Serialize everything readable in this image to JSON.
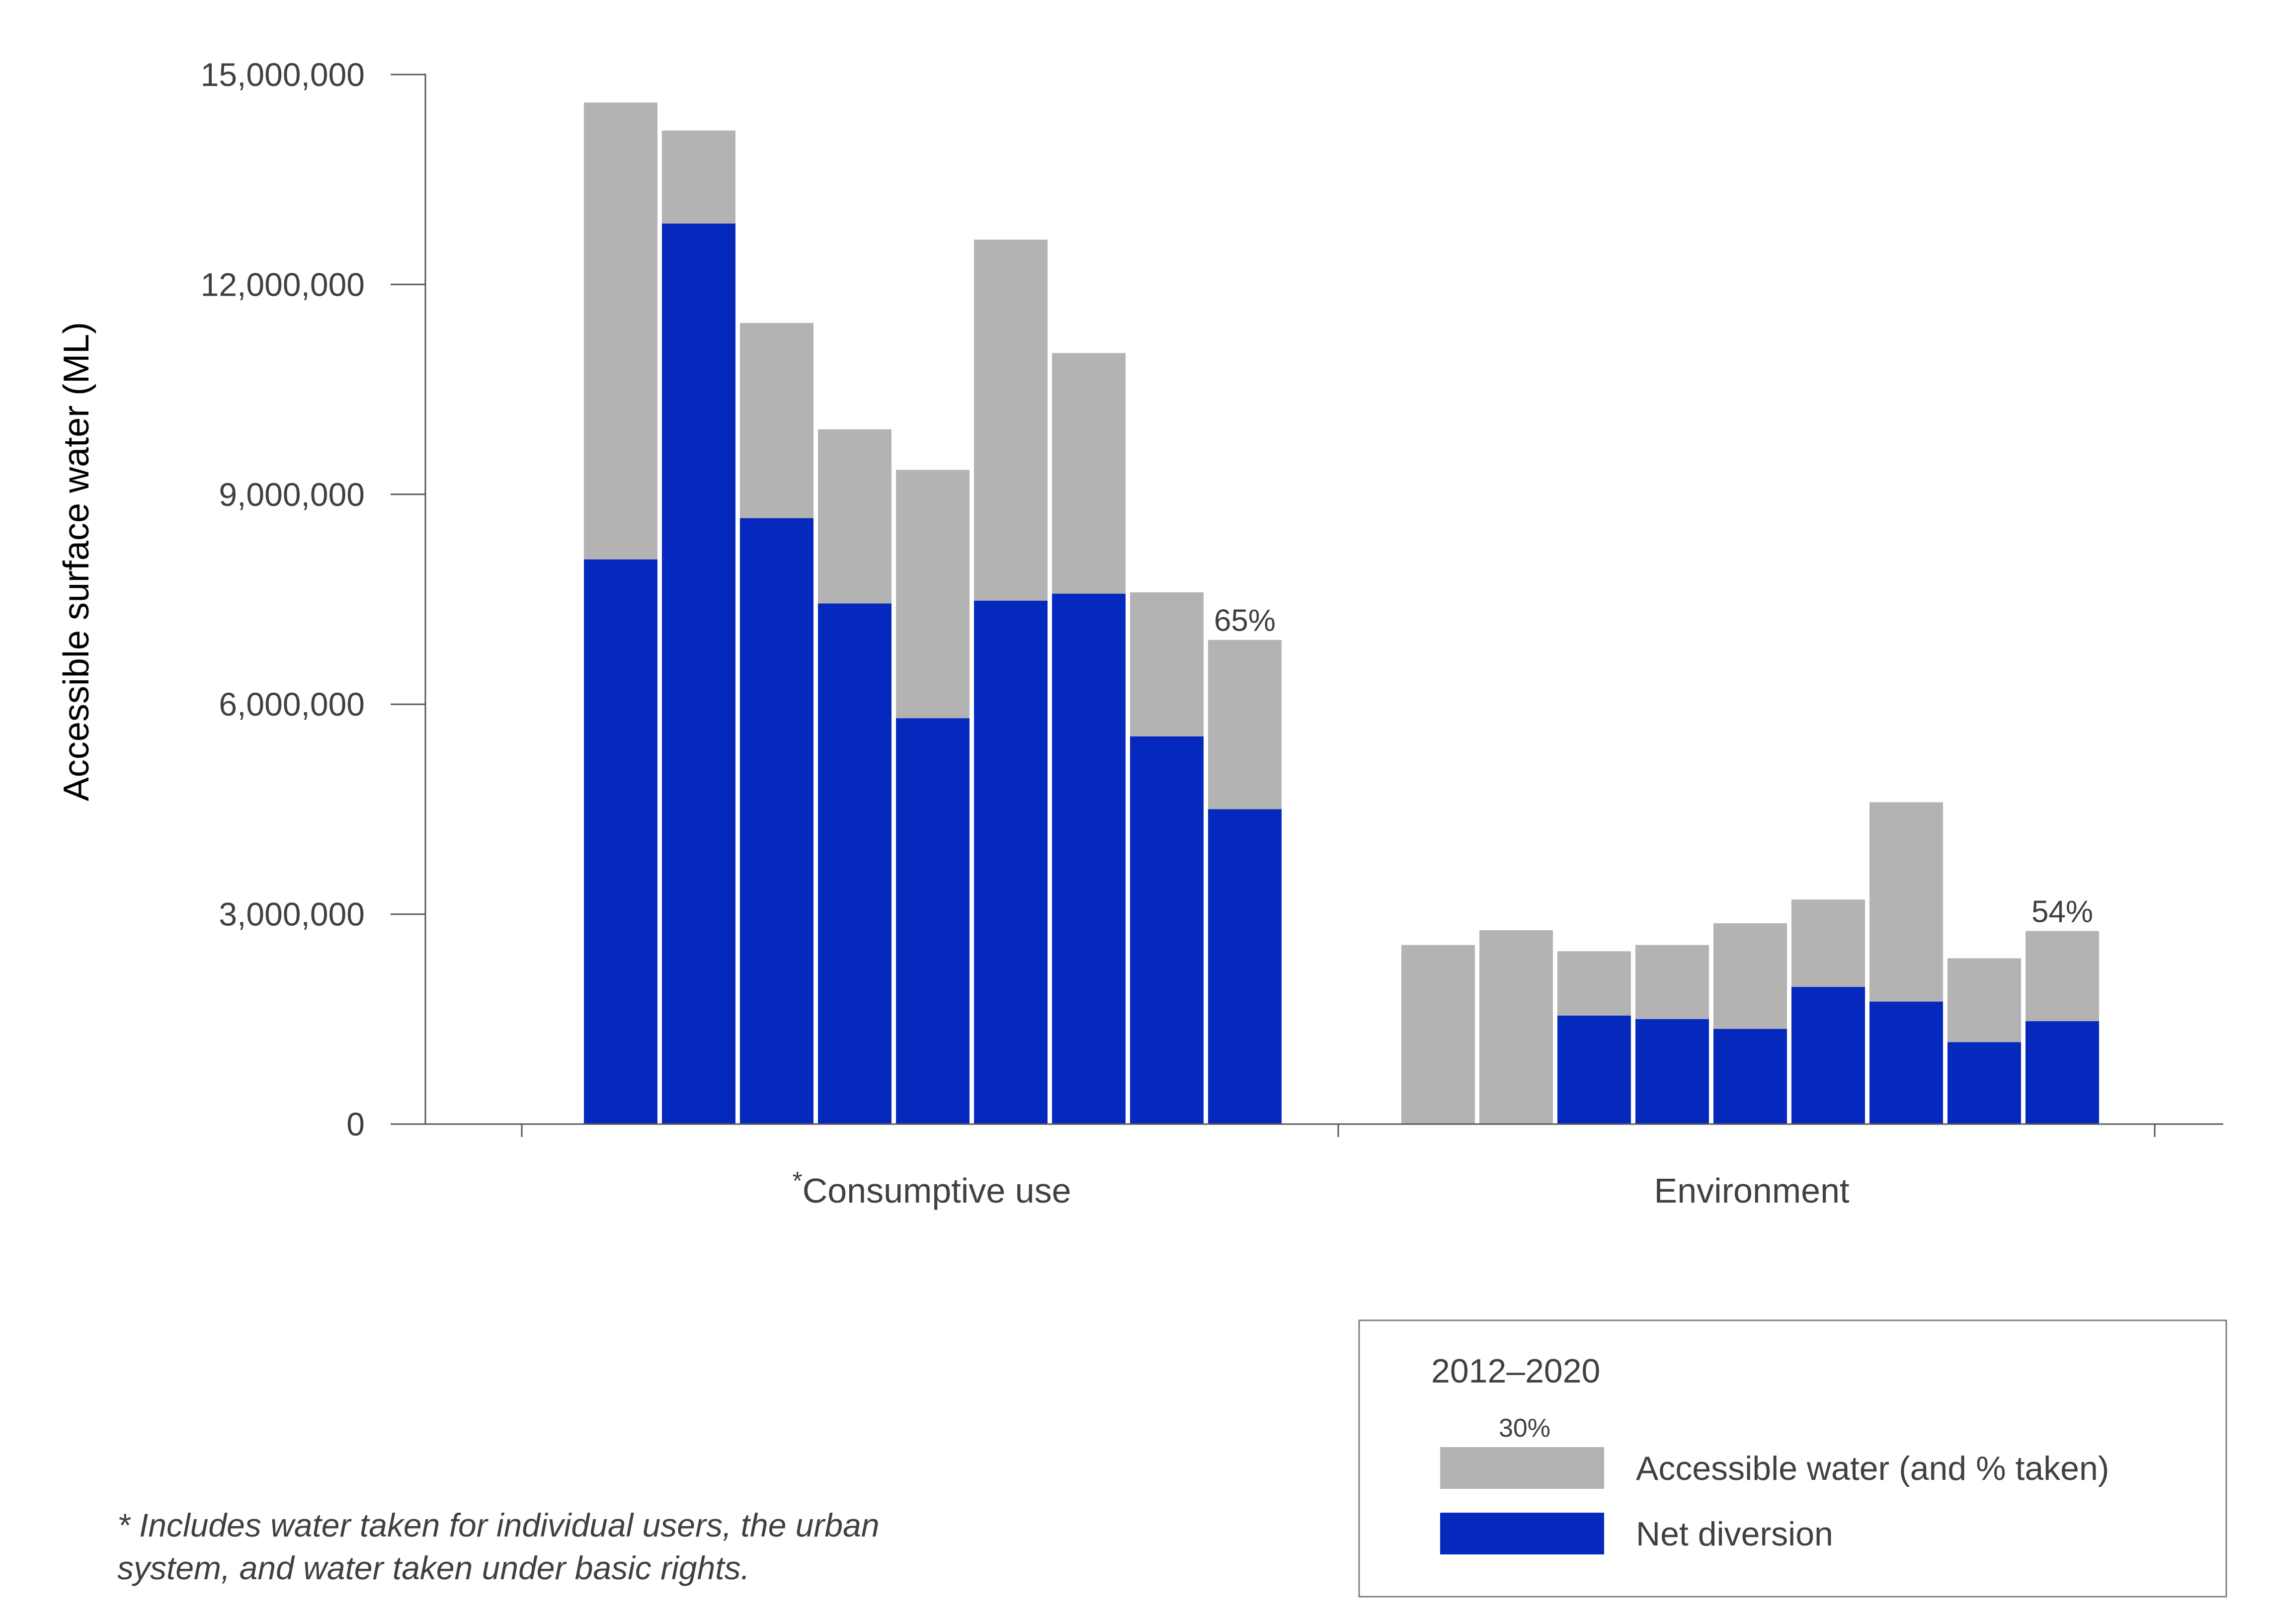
{
  "chart_data": {
    "type": "bar",
    "stacked_overlay": true,
    "ylabel": "Accessible surface water (ML)",
    "ylim": [
      0,
      15000000
    ],
    "yticks": [
      0,
      3000000,
      6000000,
      9000000,
      12000000,
      15000000
    ],
    "ytick_labels": [
      "0",
      "3,000,000",
      "6,000,000",
      "9,000,000",
      "12,000,000",
      "15,000,000"
    ],
    "groups": [
      {
        "label": "Consumptive use",
        "label_marker": "*",
        "accessible": [
          14600000,
          14200000,
          11450000,
          9930000,
          9350000,
          12640000,
          11020000,
          7600000,
          6920000
        ],
        "net_diversion": [
          8070000,
          12870000,
          8660000,
          7440000,
          5800000,
          7480000,
          7580000,
          5540000,
          4500000
        ],
        "annotation": "65%"
      },
      {
        "label": "Environment",
        "label_marker": "",
        "accessible": [
          2560000,
          2770000,
          2470000,
          2560000,
          2870000,
          3210000,
          4600000,
          2370000,
          2760000
        ],
        "net_diversion": [
          0,
          0,
          1550000,
          1500000,
          1360000,
          1960000,
          1750000,
          1170000,
          1470000
        ],
        "annotation": "54%"
      }
    ],
    "series": [
      {
        "name": "Accessible water (and % taken)",
        "color": "#b3b3b3"
      },
      {
        "name": "Net diversion",
        "color": "#0629bd"
      }
    ],
    "legend": {
      "title": "2012–2020",
      "sample_pct": "30%",
      "position": "bottom-right"
    }
  },
  "footnote": {
    "line1": "* Includes water taken for individual users, the urban",
    "line2": "system, and water taken under basic rights."
  }
}
